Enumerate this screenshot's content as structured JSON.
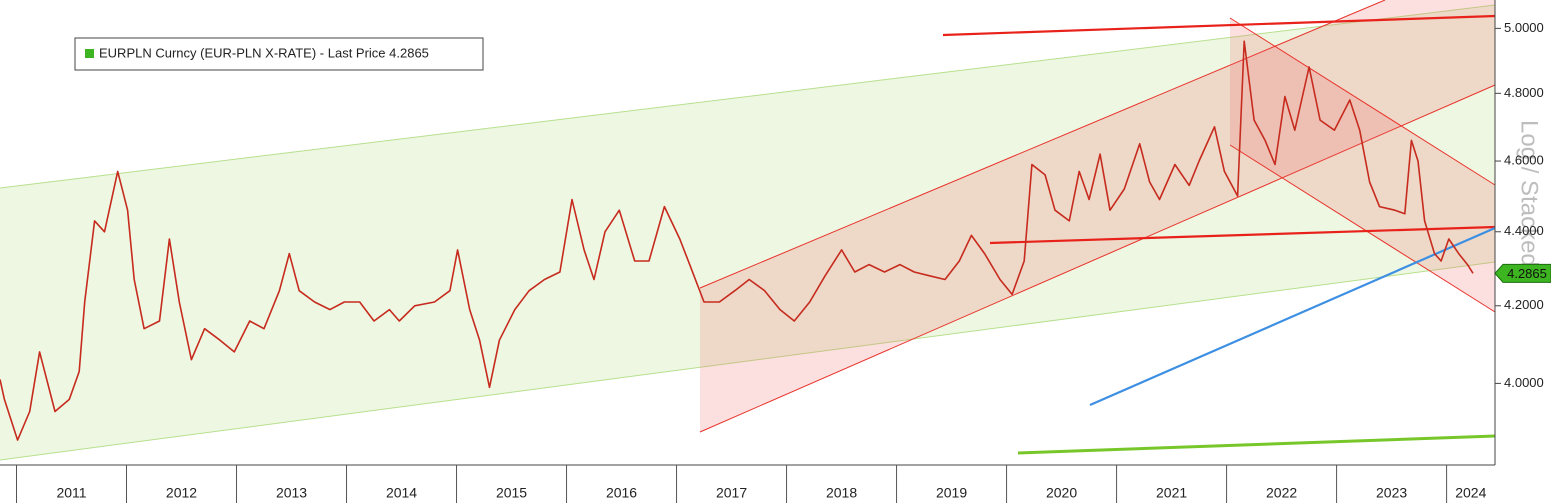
{
  "chart_data": {
    "type": "line",
    "x": [
      2010.85,
      2010.89,
      2011.01,
      2011.12,
      2011.21,
      2011.35,
      2011.48,
      2011.57,
      2011.62,
      2011.71,
      2011.8,
      2011.92,
      2012.01,
      2012.07,
      2012.16,
      2012.3,
      2012.39,
      2012.48,
      2012.59,
      2012.71,
      2012.85,
      2012.98,
      2013.12,
      2013.25,
      2013.39,
      2013.48,
      2013.57,
      2013.71,
      2013.85,
      2013.98,
      2014.12,
      2014.25,
      2014.39,
      2014.48,
      2014.62,
      2014.8,
      2014.94,
      2015.01,
      2015.12,
      2015.21,
      2015.3,
      2015.39,
      2015.53,
      2015.66,
      2015.8,
      2015.94,
      2016.05,
      2016.16,
      2016.25,
      2016.35,
      2016.48,
      2016.62,
      2016.75,
      2016.89,
      2017.03,
      2017.12,
      2017.25,
      2017.39,
      2017.53,
      2017.66,
      2017.8,
      2017.94,
      2018.07,
      2018.21,
      2018.35,
      2018.5,
      2018.62,
      2018.75,
      2018.89,
      2019.03,
      2019.16,
      2019.3,
      2019.44,
      2019.57,
      2019.68,
      2019.8,
      2019.94,
      2020.05,
      2020.16,
      2020.23,
      2020.35,
      2020.44,
      2020.57,
      2020.66,
      2020.75,
      2020.85,
      2020.94,
      2021.07,
      2021.21,
      2021.3,
      2021.39,
      2021.53,
      2021.66,
      2021.75,
      2021.89,
      2021.98,
      2022.1,
      2022.16,
      2022.25,
      2022.35,
      2022.44,
      2022.53,
      2022.62,
      2022.75,
      2022.85,
      2022.98,
      2023.12,
      2023.21,
      2023.3,
      2023.39,
      2023.53,
      2023.62,
      2023.68,
      2023.74,
      2023.8,
      2023.89,
      2023.95,
      2024.02,
      2024.11,
      2024.19,
      2024.24
    ],
    "series": [
      {
        "name": "EURPLN Curncy (EUR-PLN X-RATE) - Last Price 4.2865",
        "color": "#c62b1e",
        "legend_color": "#3cb521",
        "values": [
          4.01,
          3.96,
          3.86,
          3.93,
          4.08,
          3.93,
          3.96,
          4.03,
          4.21,
          4.43,
          4.4,
          4.57,
          4.46,
          4.27,
          4.14,
          4.16,
          4.38,
          4.21,
          4.06,
          4.14,
          4.11,
          4.08,
          4.16,
          4.14,
          4.24,
          4.34,
          4.24,
          4.21,
          4.19,
          4.21,
          4.21,
          4.16,
          4.19,
          4.16,
          4.2,
          4.21,
          4.24,
          4.35,
          4.19,
          4.11,
          3.99,
          4.11,
          4.19,
          4.24,
          4.27,
          4.29,
          4.49,
          4.35,
          4.27,
          4.4,
          4.46,
          4.32,
          4.32,
          4.47,
          4.38,
          4.31,
          4.21,
          4.21,
          4.24,
          4.27,
          4.24,
          4.19,
          4.16,
          4.21,
          4.28,
          4.35,
          4.29,
          4.31,
          4.29,
          4.31,
          4.29,
          4.28,
          4.27,
          4.32,
          4.39,
          4.34,
          4.27,
          4.23,
          4.32,
          4.59,
          4.56,
          4.46,
          4.43,
          4.57,
          4.49,
          4.62,
          4.46,
          4.52,
          4.65,
          4.54,
          4.49,
          4.59,
          4.53,
          4.6,
          4.7,
          4.57,
          4.5,
          4.96,
          4.72,
          4.66,
          4.59,
          4.79,
          4.69,
          4.88,
          4.72,
          4.69,
          4.78,
          4.69,
          4.54,
          4.47,
          4.46,
          4.45,
          4.66,
          4.6,
          4.43,
          4.34,
          4.32,
          4.38,
          4.34,
          4.31,
          4.2865
        ]
      }
    ],
    "xlim": [
      2010.85,
      2024.44
    ],
    "xticks": [
      2011,
      2012,
      2013,
      2014,
      2015,
      2016,
      2017,
      2018,
      2019,
      2020,
      2021,
      2022,
      2023,
      2024
    ],
    "ylim": [
      3.8,
      5.09
    ],
    "yticks": [
      {
        "value": 4.0,
        "label": "4.0000"
      },
      {
        "value": 4.2,
        "label": "4.2000"
      },
      {
        "value": 4.4,
        "label": "4.4000"
      },
      {
        "value": 4.6,
        "label": "4.6000"
      },
      {
        "value": 4.8,
        "label": "4.8000"
      },
      {
        "value": 5.0,
        "label": "5.0000"
      }
    ],
    "log_scale": true,
    "scale_label": "Log / Stacked",
    "last_price": 4.2865,
    "last_price_color": "#3cb521"
  }
}
